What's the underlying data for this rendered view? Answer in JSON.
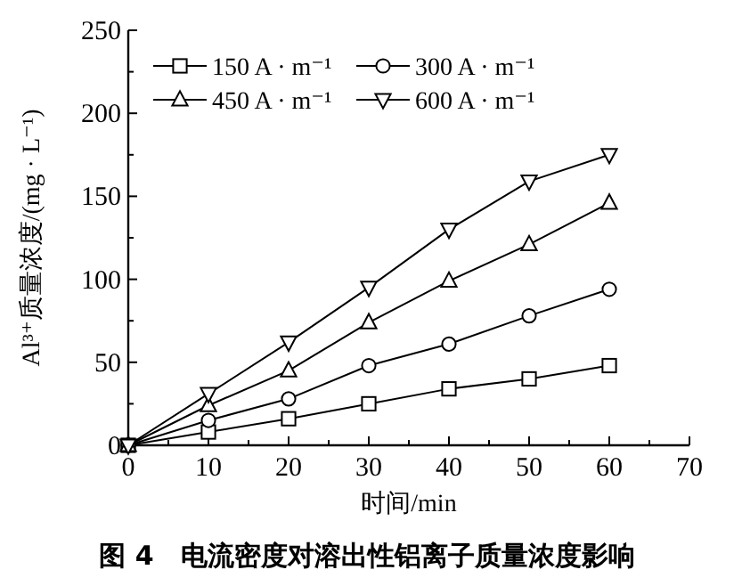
{
  "chart_data": {
    "type": "line",
    "title": "图 4　电流密度对溶出性铝离子质量浓度影响",
    "xlabel": "时间/min",
    "ylabel": "Al³⁺质量浓度/(mg · L⁻¹)",
    "x": [
      0,
      10,
      20,
      30,
      40,
      50,
      60
    ],
    "series": [
      {
        "name": "150 A · m⁻¹",
        "color": "#000000",
        "marker": "square",
        "values": [
          0,
          8,
          16,
          25,
          34,
          40,
          48
        ]
      },
      {
        "name": "300 A · m⁻¹",
        "color": "#000000",
        "marker": "circle",
        "values": [
          0,
          15,
          28,
          48,
          61,
          78,
          94
        ]
      },
      {
        "name": "450 A · m⁻¹",
        "color": "#000000",
        "marker": "triangle",
        "values": [
          0,
          24,
          45,
          74,
          99,
          121,
          146
        ]
      },
      {
        "name": "600 A · m⁻¹",
        "color": "#000000",
        "marker": "triangle-down",
        "values": [
          0,
          31,
          62,
          95,
          130,
          159,
          175
        ]
      }
    ],
    "xlim": [
      0,
      70
    ],
    "ylim": [
      0,
      250
    ],
    "xticks": [
      0,
      {
        "value": 5,
        "label": null
      },
      10,
      {
        "value": 15,
        "label": null
      },
      20,
      {
        "value": 25,
        "label": null
      },
      30,
      {
        "value": 35,
        "label": null
      },
      40,
      {
        "value": 45,
        "label": null
      },
      50,
      {
        "value": 55,
        "label": null
      },
      60,
      {
        "value": 65,
        "label": null
      },
      70
    ],
    "yticks": [
      0,
      {
        "value": 25,
        "label": null
      },
      50,
      {
        "value": 75,
        "label": null
      },
      100,
      {
        "value": 125,
        "label": null
      },
      150,
      {
        "value": 175,
        "label": null
      },
      200,
      {
        "value": 225,
        "label": null
      },
      250
    ],
    "legend": "top left",
    "grid": false,
    "line_style": "solid"
  }
}
